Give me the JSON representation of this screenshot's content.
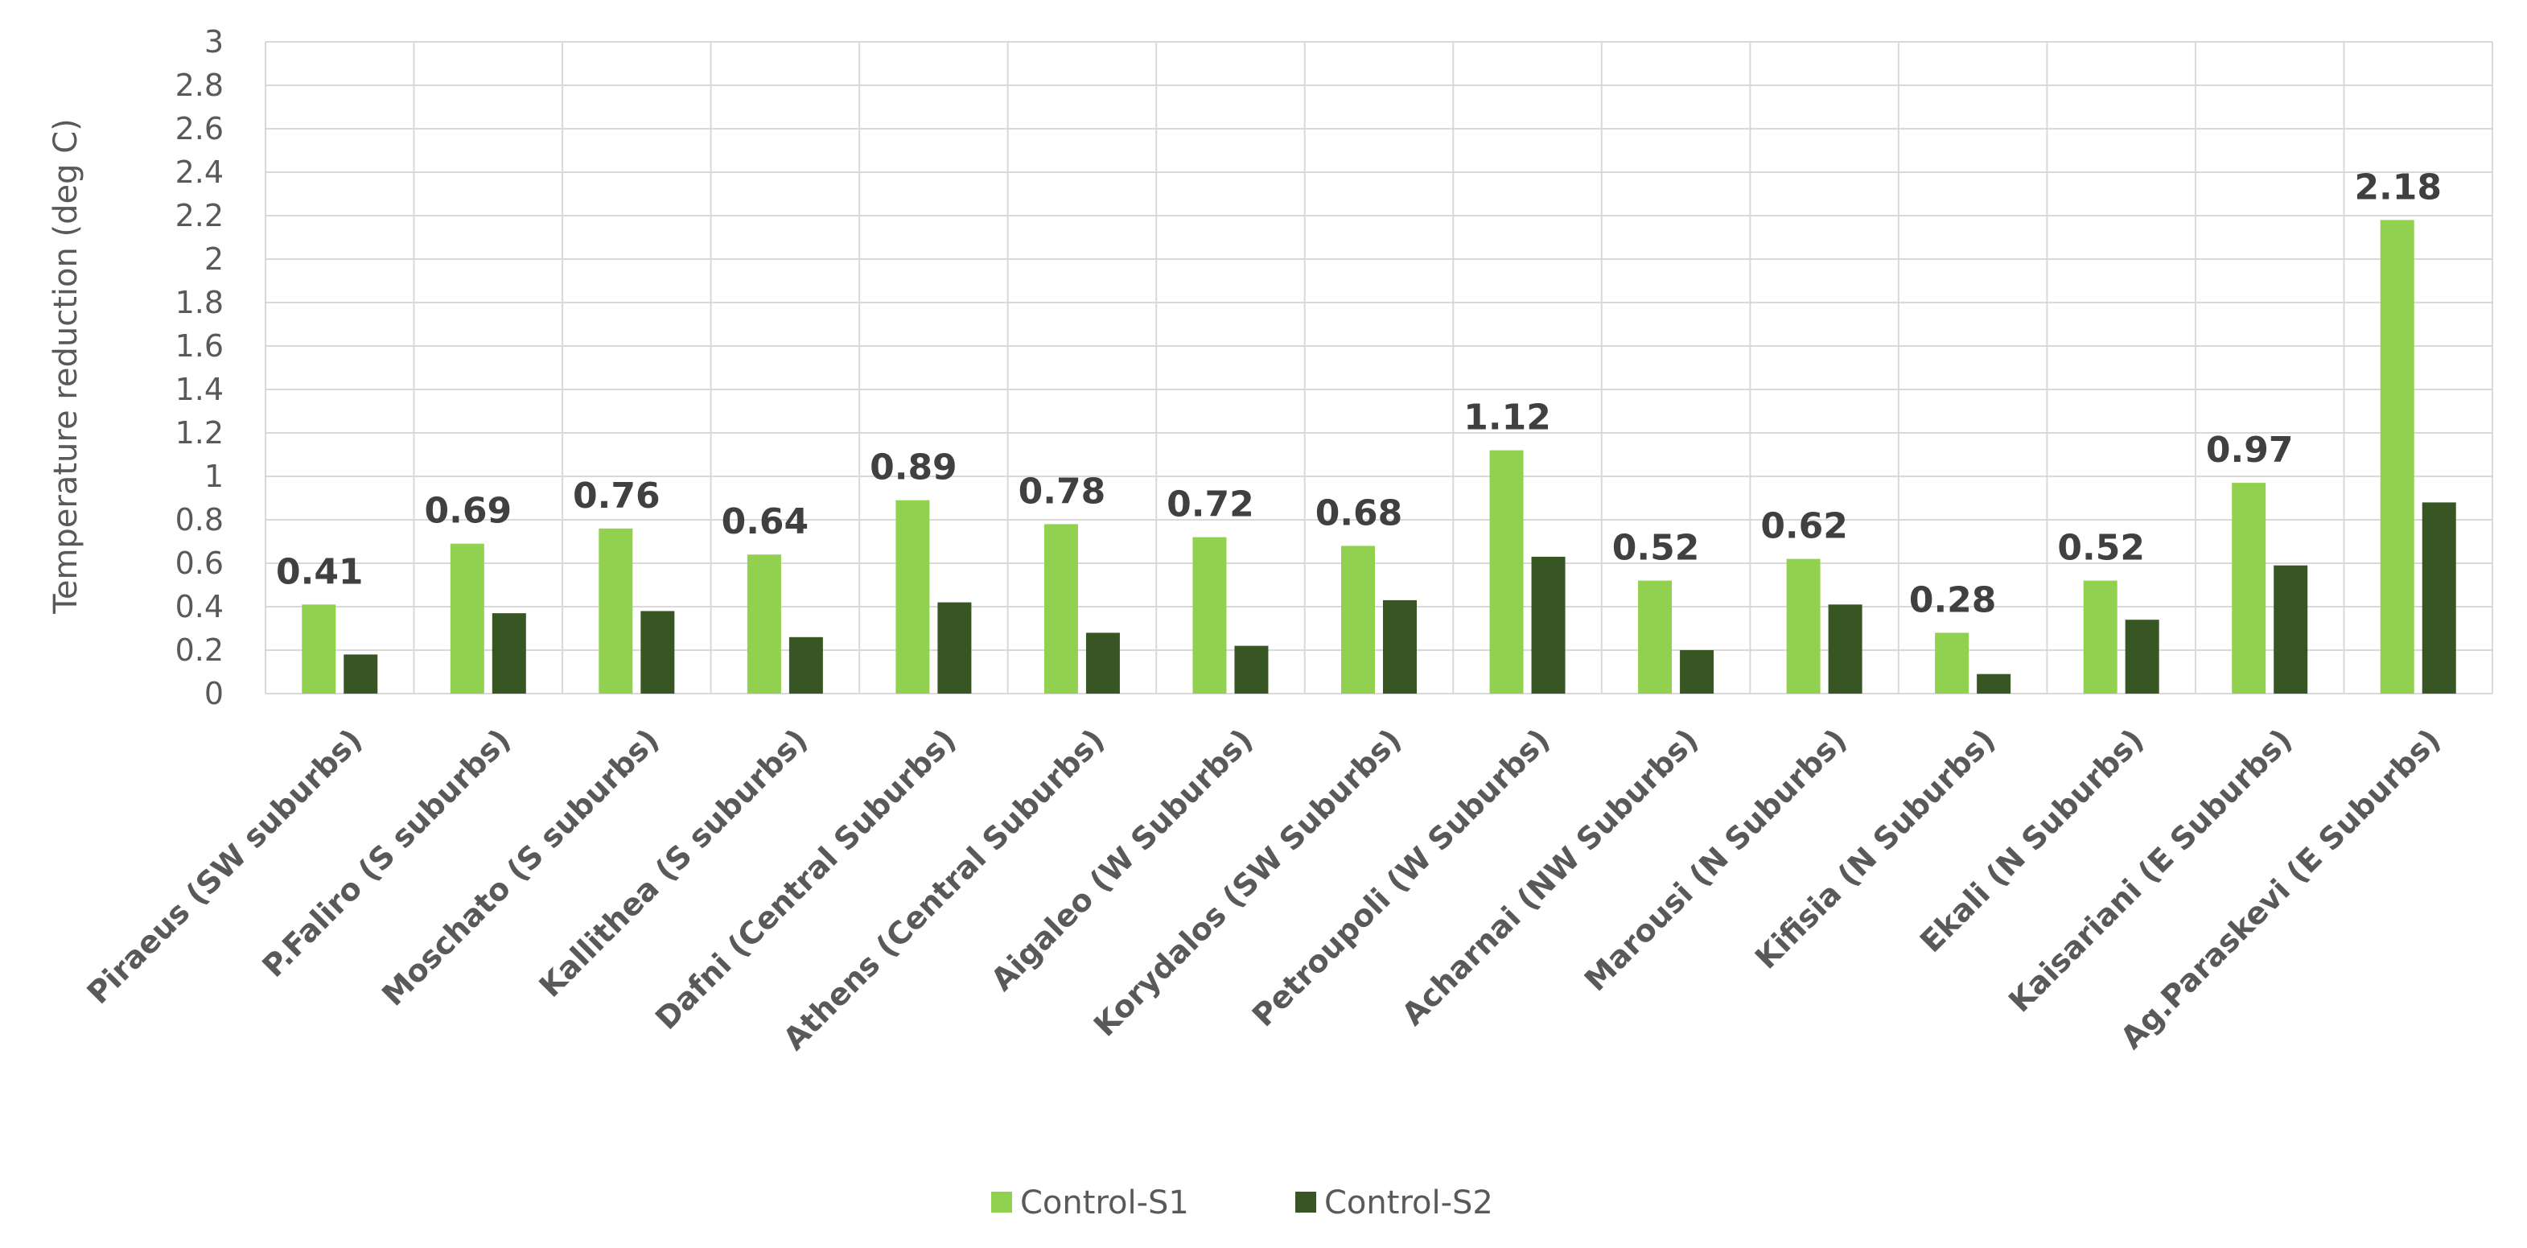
{
  "chart_data": {
    "type": "bar",
    "title": "",
    "xlabel": "",
    "ylabel": "Temperature reduction (deg C)",
    "ylim": [
      0,
      3
    ],
    "ytick_step": 0.2,
    "yticks": [
      "0",
      "0.2",
      "0.4",
      "0.6",
      "0.8",
      "1",
      "1.2",
      "1.4",
      "1.6",
      "1.8",
      "2",
      "2.2",
      "2.4",
      "2.6",
      "2.8",
      "3"
    ],
    "grid": true,
    "legend_position": "bottom",
    "categories": [
      "Piraeus (SW suburbs)",
      "P.Faliro (S suburbs)",
      "Moschato (S suburbs)",
      "Kallithea (S suburbs)",
      "Dafni (Central Suburbs)",
      "Athens (Central Suburbs)",
      "Aigaleo (W Suburbs)",
      "Korydalos (SW Suburbs)",
      "Petroupoli (W Suburbs)",
      "Acharnai (NW Suburbs)",
      "Marousi (N Suburbs)",
      "Kifisia (N Suburbs)",
      "Ekali (N Suburbs)",
      "Kaisariani (E Suburbs)",
      "Ag.Paraskevi (E Suburbs)"
    ],
    "series": [
      {
        "name": "Control-S1",
        "color": "#92d050",
        "values": [
          0.41,
          0.69,
          0.76,
          0.64,
          0.89,
          0.78,
          0.72,
          0.68,
          1.12,
          0.52,
          0.62,
          0.28,
          0.52,
          0.97,
          2.18
        ],
        "data_labels": [
          "0.41",
          "0.69",
          "0.76",
          "0.64",
          "0.89",
          "0.78",
          "0.72",
          "0.68",
          "1.12",
          "0.52",
          "0.62",
          "0.28",
          "0.52",
          "0.97",
          "2.18"
        ]
      },
      {
        "name": "Control-S2",
        "color": "#375623",
        "values": [
          0.18,
          0.37,
          0.38,
          0.26,
          0.42,
          0.28,
          0.22,
          0.43,
          0.63,
          0.2,
          0.41,
          0.09,
          0.34,
          0.59,
          0.88
        ]
      }
    ]
  }
}
